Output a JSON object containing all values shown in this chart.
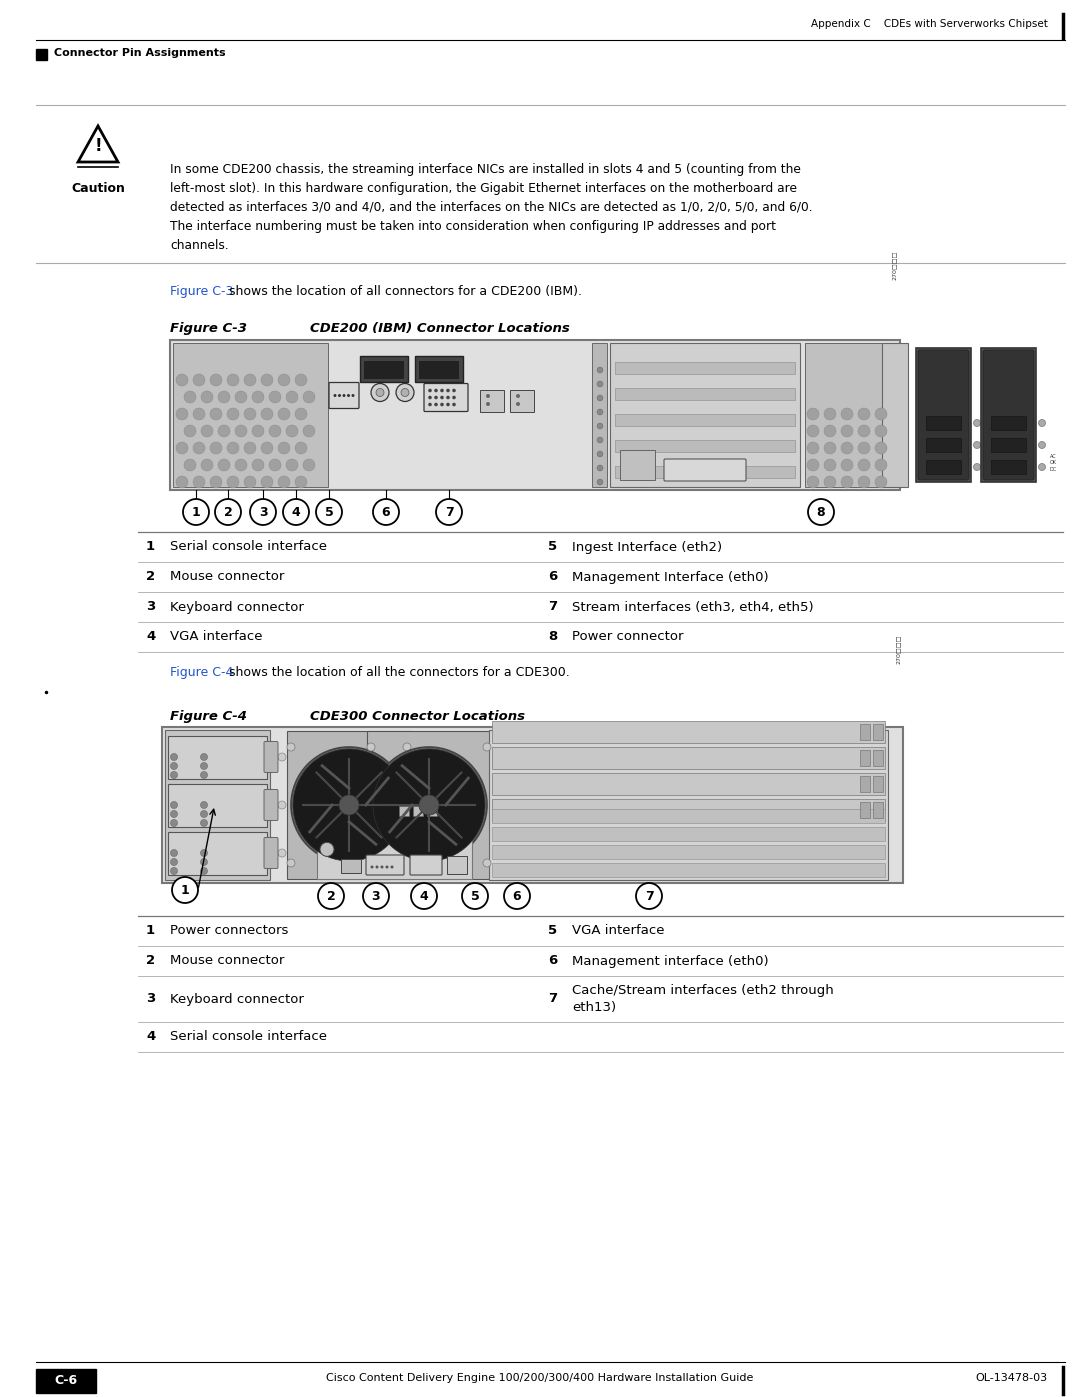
{
  "page_title_right": "Appendix C    CDEs with Serverworks Chipset",
  "page_header_left": "Connector Pin Assignments",
  "caution_lines": [
    "In some CDE200 chassis, the streaming interface NICs are installed in slots 4 and 5 (counting from the",
    "left-most slot). In this hardware configuration, the Gigabit Ethernet interfaces on the motherboard are",
    "detected as interfaces 3/0 and 4/0, and the interfaces on the NICs are detected as 1/0, 2/0, 5/0, and 6/0.",
    "The interface numbering must be taken into consideration when configuring IP addresses and port",
    "channels."
  ],
  "fig3_ref_link": "Figure C-3",
  "fig3_ref_rest": " shows the location of all connectors for a CDE200 (IBM).",
  "fig3_label": "Figure C-3",
  "fig3_title": "CDE200 (IBM) Connector Locations",
  "fig3_table": [
    [
      "1",
      "Serial console interface",
      "5",
      "Ingest Interface (eth2)"
    ],
    [
      "2",
      "Mouse connector",
      "6",
      "Management Interface (eth0)"
    ],
    [
      "3",
      "Keyboard connector",
      "7",
      "Stream interfaces (eth3, eth4, eth5)"
    ],
    [
      "4",
      "VGA interface",
      "8",
      "Power connector"
    ]
  ],
  "fig3_callouts_x": [
    196,
    228,
    263,
    296,
    329,
    386,
    449,
    821
  ],
  "fig3_callouts_n": [
    "1",
    "2",
    "3",
    "4",
    "5",
    "6",
    "7",
    "8"
  ],
  "fig4_ref_link": "Figure C-4",
  "fig4_ref_rest": " shows the location of all the connectors for a CDE300.",
  "fig4_label": "Figure C-4",
  "fig4_title": "CDE300 Connector Locations",
  "fig4_table_rows": [
    [
      "1",
      "Power connectors",
      "5",
      "VGA interface"
    ],
    [
      "2",
      "Mouse connector",
      "6",
      "Management interface (eth0)"
    ],
    [
      "3",
      "Keyboard connector",
      "7",
      "Cache/Stream interfaces (eth2 through\neth13)"
    ],
    [
      "4",
      "Serial console interface",
      "",
      ""
    ]
  ],
  "fig4_callouts_x": [
    331,
    376,
    424,
    475,
    517,
    649
  ],
  "fig4_callouts_n": [
    "2",
    "3",
    "4",
    "5",
    "6",
    "7"
  ],
  "footer_center": "Cisco Content Delivery Engine 100/200/300/400 Hardware Installation Guide",
  "footer_right": "OL-13478-03",
  "footer_page": "C-6",
  "link_color": "#2255CC",
  "text_color": "#000000",
  "bg_color": "#ffffff",
  "gray1": "#c8c8c8",
  "gray2": "#b0b0b0",
  "gray3": "#909090",
  "gray4": "#707070",
  "darkgray": "#444444"
}
